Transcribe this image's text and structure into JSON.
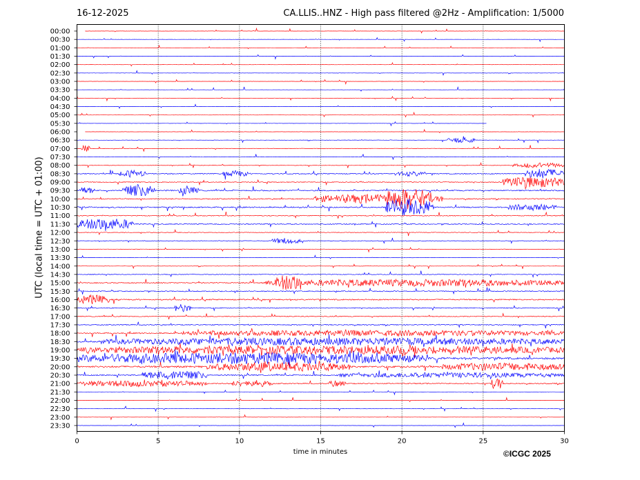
{
  "header": {
    "date": "16-12-2025",
    "title": "CA.LLIS..HNZ - High pass filtered @2Hz - Amplification: 1/5000"
  },
  "footer": {
    "copyright": "©ICGC 2025"
  },
  "colors": {
    "trace_a": "#ff0000",
    "trace_b": "#0000ff",
    "grid": "#000000",
    "background": "#ffffff"
  },
  "chart_data": {
    "type": "line",
    "subtype": "helicorder",
    "xlabel": "time in minutes",
    "ylabel": "UTC (local time = UTC + 01:00)",
    "xlim": [
      0,
      30
    ],
    "x_ticks": [
      0,
      5,
      10,
      15,
      20,
      25,
      30
    ],
    "grid": "vertical dotted at each 5 minutes",
    "trace_colors_alternating": [
      "#ff0000",
      "#0000ff"
    ],
    "rows": [
      "00:00",
      "00:30",
      "01:00",
      "01:30",
      "02:00",
      "02:30",
      "03:00",
      "03:30",
      "04:00",
      "04:30",
      "05:00",
      "05:30",
      "06:00",
      "06:30",
      "07:00",
      "07:30",
      "08:00",
      "08:30",
      "09:00",
      "09:30",
      "10:00",
      "10:30",
      "11:00",
      "11:30",
      "12:00",
      "12:30",
      "13:00",
      "13:30",
      "14:00",
      "14:30",
      "15:00",
      "15:30",
      "16:00",
      "16:30",
      "17:00",
      "17:30",
      "18:00",
      "18:30",
      "19:00",
      "19:30",
      "20:00",
      "20:30",
      "21:00",
      "21:30",
      "22:00",
      "22:30",
      "23:00",
      "23:30"
    ],
    "activity_level": [
      0.06,
      0.06,
      0.06,
      0.06,
      0.07,
      0.07,
      0.06,
      0.06,
      0.07,
      0.07,
      0.07,
      0.07,
      0.06,
      0.1,
      0.15,
      0.1,
      0.12,
      0.3,
      0.25,
      0.35,
      0.3,
      0.35,
      0.25,
      0.3,
      0.18,
      0.18,
      0.15,
      0.08,
      0.1,
      0.2,
      0.3,
      0.3,
      0.35,
      0.25,
      0.25,
      0.3,
      0.35,
      0.45,
      0.55,
      0.6,
      0.55,
      0.35,
      0.3,
      0.06,
      0.06,
      0.06,
      0.06,
      0.06
    ],
    "trace_extent_minutes": [
      [
        0.5,
        30
      ],
      [
        0,
        30
      ],
      [
        0,
        30
      ],
      [
        0,
        30
      ],
      [
        0,
        30
      ],
      [
        0,
        30
      ],
      [
        0,
        30
      ],
      [
        0,
        30
      ],
      [
        0,
        30
      ],
      [
        0,
        30
      ],
      [
        0,
        30
      ],
      [
        0,
        25.2
      ],
      [
        0.5,
        30
      ],
      [
        0,
        30
      ],
      [
        0,
        30
      ],
      [
        0,
        30
      ],
      [
        0,
        30
      ],
      [
        0,
        30
      ],
      [
        0,
        30
      ],
      [
        0,
        30
      ],
      [
        0,
        30
      ],
      [
        0,
        30
      ],
      [
        0,
        30
      ],
      [
        0,
        30
      ],
      [
        0,
        30
      ],
      [
        0,
        30
      ],
      [
        0,
        30
      ],
      [
        0,
        30
      ],
      [
        0,
        30
      ],
      [
        0,
        30
      ],
      [
        0,
        30
      ],
      [
        0,
        30
      ],
      [
        0,
        30
      ],
      [
        0,
        30
      ],
      [
        0,
        30
      ],
      [
        0,
        30
      ],
      [
        0,
        30
      ],
      [
        0,
        30
      ],
      [
        0,
        30
      ],
      [
        0,
        30
      ],
      [
        0,
        30
      ],
      [
        0,
        30
      ],
      [
        0,
        30
      ],
      [
        0,
        30
      ],
      [
        0,
        30
      ],
      [
        0,
        30
      ],
      [
        0,
        30
      ],
      [
        0,
        30
      ]
    ],
    "events": [
      {
        "row": "06:30",
        "start": 22.8,
        "end": 24.5,
        "amp": 0.8
      },
      {
        "row": "07:00",
        "start": 0.3,
        "end": 0.8,
        "amp": 1.0
      },
      {
        "row": "08:00",
        "start": 26.8,
        "end": 30,
        "amp": 0.7
      },
      {
        "row": "08:30",
        "start": 2.5,
        "end": 4.2,
        "amp": 0.9
      },
      {
        "row": "08:30",
        "start": 9.0,
        "end": 10.5,
        "amp": 0.8
      },
      {
        "row": "08:30",
        "start": 19.5,
        "end": 21.5,
        "amp": 0.6
      },
      {
        "row": "08:30",
        "start": 27.5,
        "end": 30,
        "amp": 1.3
      },
      {
        "row": "09:00",
        "start": 26.2,
        "end": 30,
        "amp": 1.5
      },
      {
        "row": "09:30",
        "start": 0,
        "end": 1.2,
        "amp": 0.8
      },
      {
        "row": "09:30",
        "start": 2.8,
        "end": 4.8,
        "amp": 1.6
      },
      {
        "row": "09:30",
        "start": 6.2,
        "end": 7.5,
        "amp": 0.9
      },
      {
        "row": "10:00",
        "start": 14.5,
        "end": 22.5,
        "amp": 1.2
      },
      {
        "row": "10:00",
        "start": 19.0,
        "end": 21.8,
        "amp": 1.9
      },
      {
        "row": "10:30",
        "start": 19.0,
        "end": 22.0,
        "amp": 2.4
      },
      {
        "row": "10:30",
        "start": 26.5,
        "end": 29.5,
        "amp": 0.8
      },
      {
        "row": "11:30",
        "start": 0,
        "end": 3.5,
        "amp": 1.6
      },
      {
        "row": "12:30",
        "start": 12.0,
        "end": 13.8,
        "amp": 0.8
      },
      {
        "row": "15:00",
        "start": 11.5,
        "end": 30,
        "amp": 0.9
      },
      {
        "row": "15:00",
        "start": 12.2,
        "end": 13.8,
        "amp": 1.6
      },
      {
        "row": "16:00",
        "start": 0,
        "end": 2.0,
        "amp": 1.2
      },
      {
        "row": "16:30",
        "start": 6.0,
        "end": 7.0,
        "amp": 1.1
      },
      {
        "row": "18:00",
        "start": 6.5,
        "end": 30,
        "amp": 0.7
      },
      {
        "row": "18:30",
        "start": 1.5,
        "end": 30,
        "amp": 0.9
      },
      {
        "row": "19:00",
        "start": 0,
        "end": 30,
        "amp": 1.0
      },
      {
        "row": "19:30",
        "start": 0,
        "end": 21.5,
        "amp": 1.4
      },
      {
        "row": "20:00",
        "start": 8.0,
        "end": 17.0,
        "amp": 1.1
      },
      {
        "row": "20:00",
        "start": 22.5,
        "end": 30,
        "amp": 0.9
      },
      {
        "row": "20:30",
        "start": 4.0,
        "end": 8.0,
        "amp": 1.2
      },
      {
        "row": "20:30",
        "start": 16.0,
        "end": 30,
        "amp": 0.6
      },
      {
        "row": "21:00",
        "start": 0,
        "end": 8.0,
        "amp": 0.8
      },
      {
        "row": "21:00",
        "start": 9.5,
        "end": 12.0,
        "amp": 0.9
      },
      {
        "row": "21:00",
        "start": 15.5,
        "end": 16.5,
        "amp": 0.9
      },
      {
        "row": "21:00",
        "start": 25.5,
        "end": 26.2,
        "amp": 1.6
      }
    ]
  }
}
